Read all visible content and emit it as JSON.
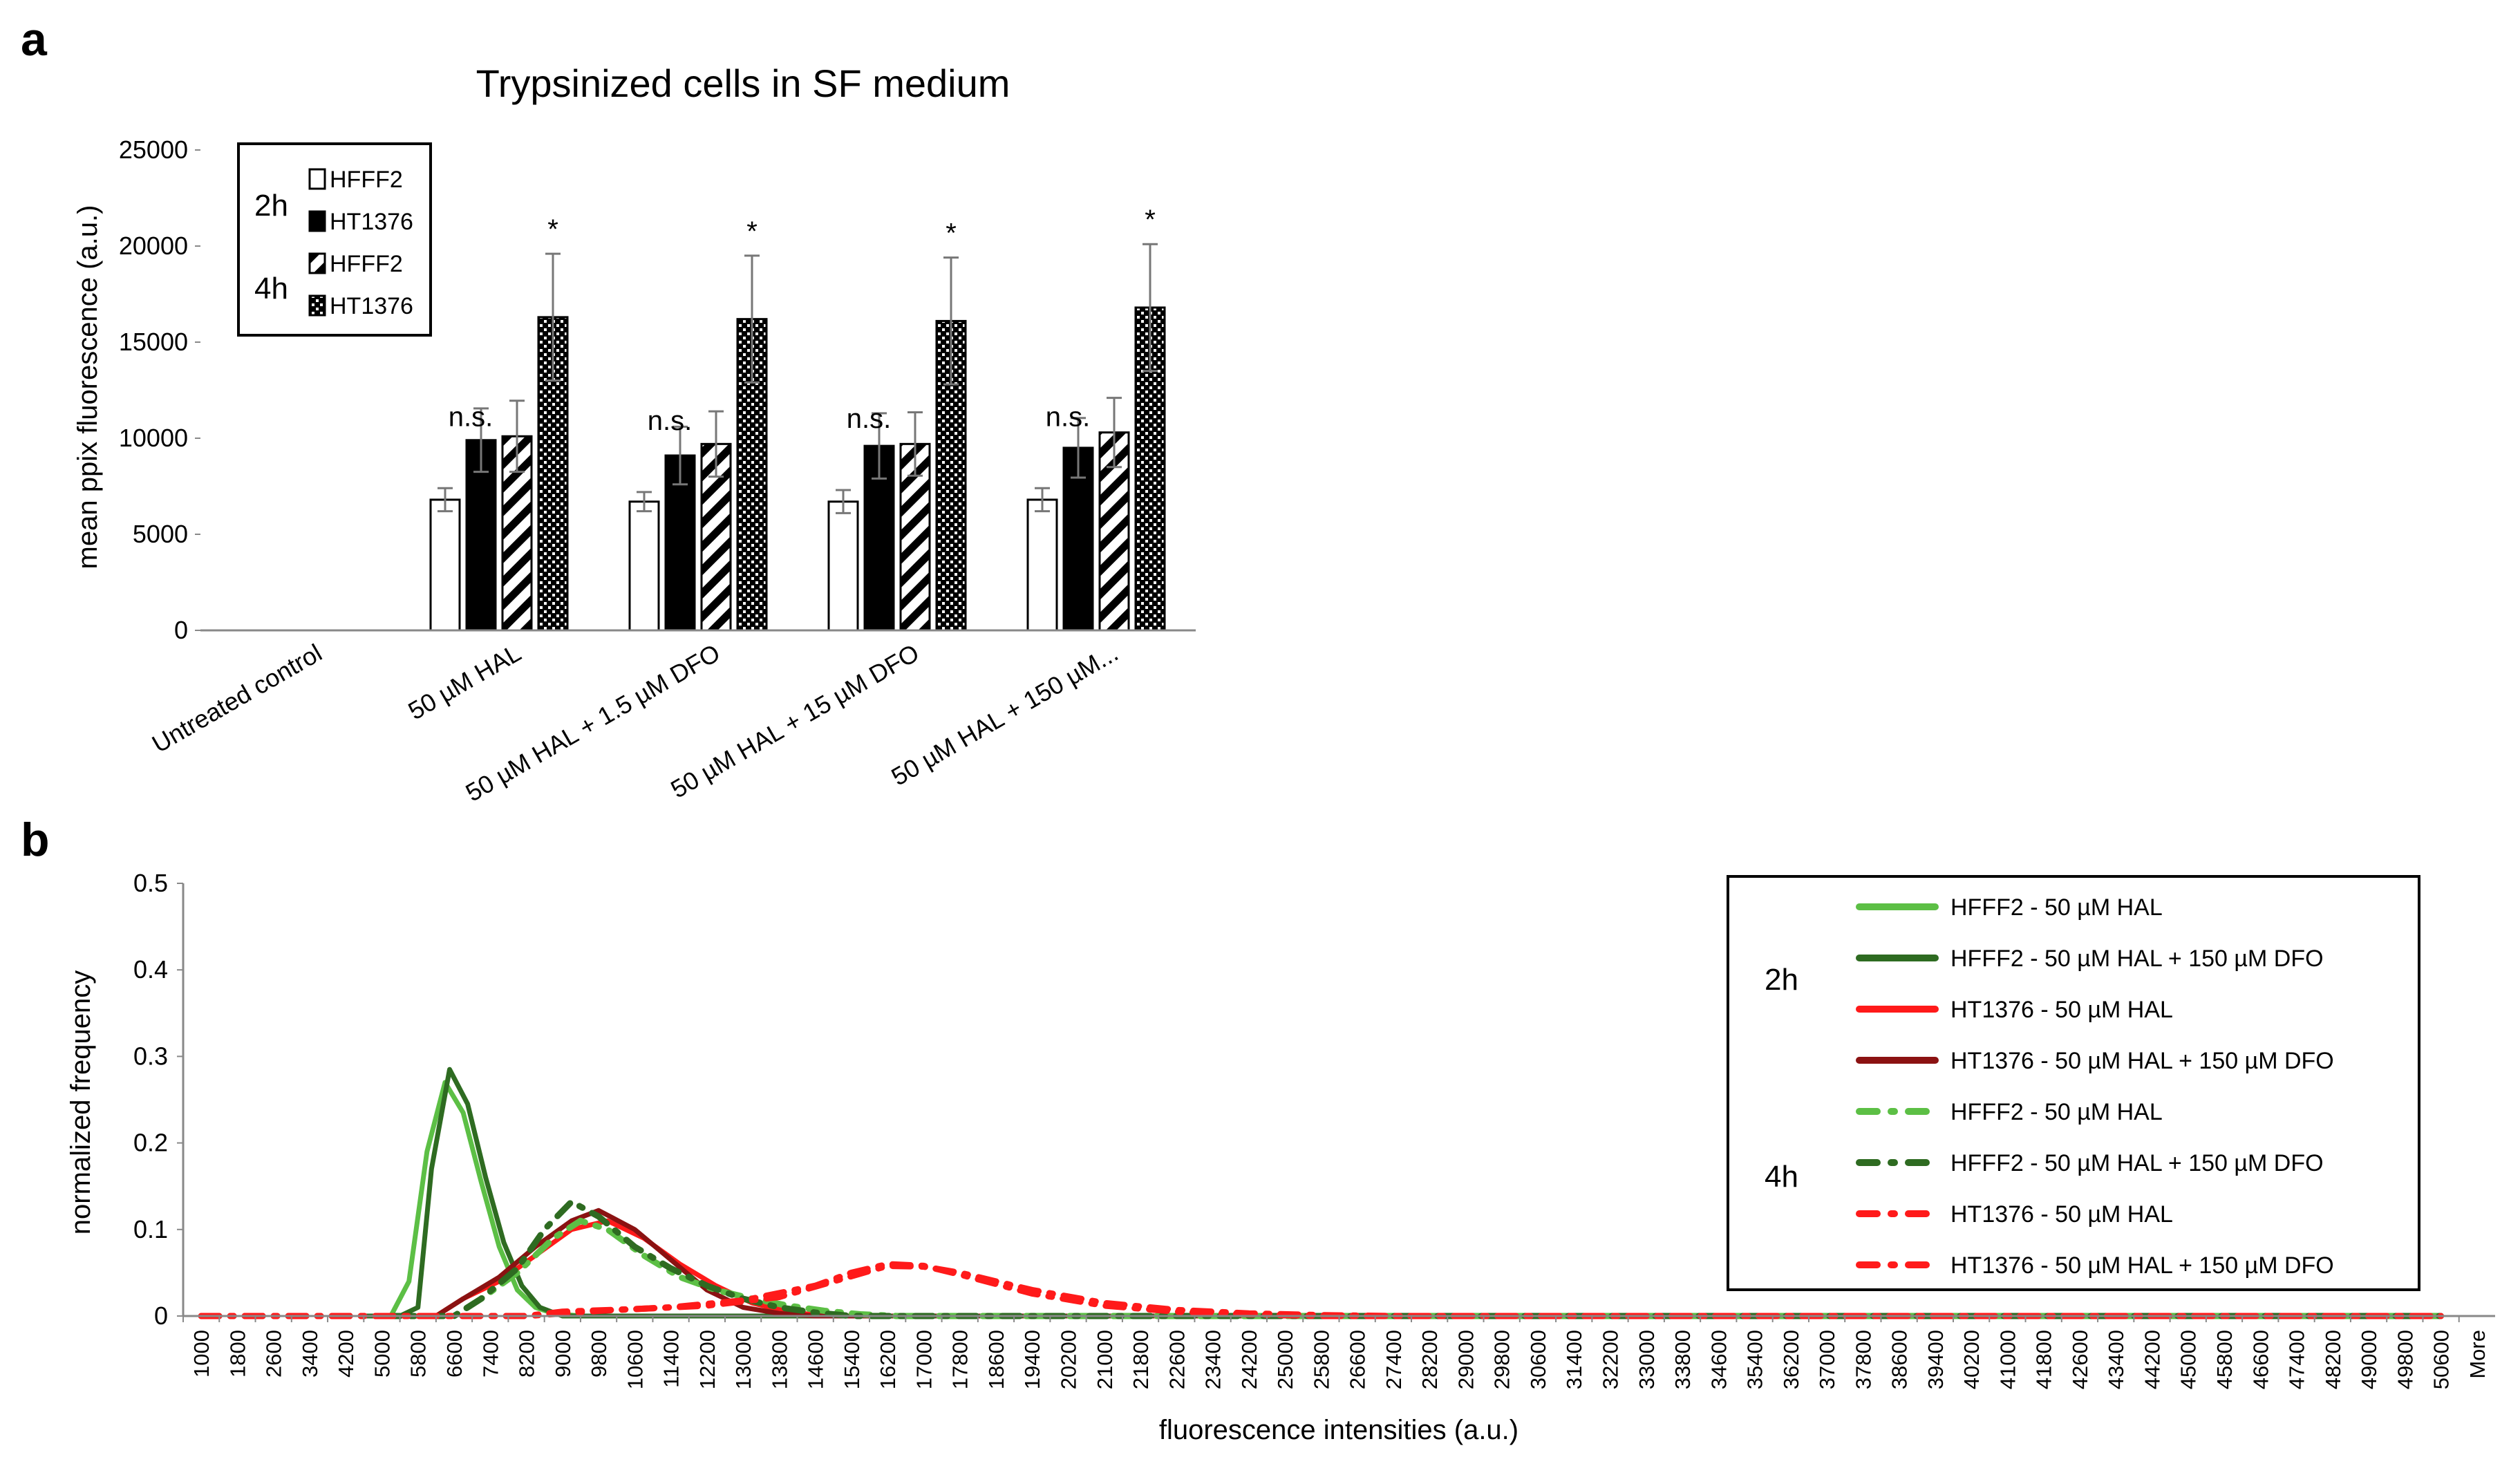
{
  "panels": {
    "a": {
      "letter": "a"
    },
    "b": {
      "letter": "b"
    }
  },
  "chart_data": [
    {
      "type": "bar",
      "panel": "a",
      "title": "Trypsinized cells in SF medium",
      "xlabel": "",
      "ylabel": "mean ppix fluorescence (a.u.)",
      "ylim": [
        0,
        25000
      ],
      "yticks": [
        "0",
        "5000",
        "10000",
        "15000",
        "20000",
        "25000"
      ],
      "categories": [
        "Untreated control",
        "50 µM HAL",
        "50 µM HAL + 1.5 µM DFO",
        "50 µM HAL + 15 µM DFO",
        "50 µM HAL + 150 µM..."
      ],
      "series": [
        {
          "name": "HFFF2",
          "time": "2h",
          "pattern": "white",
          "values": [
            0,
            6800,
            6700,
            6700,
            6800
          ],
          "errors": [
            0,
            600,
            500,
            600,
            600
          ]
        },
        {
          "name": "HT1376",
          "time": "2h",
          "pattern": "black",
          "values": [
            0,
            9900,
            9100,
            9600,
            9500
          ],
          "errors": [
            0,
            1650,
            1500,
            1700,
            1550
          ]
        },
        {
          "name": "HFFF2",
          "time": "4h",
          "pattern": "diagonal",
          "values": [
            0,
            10100,
            9700,
            9700,
            10300
          ],
          "errors": [
            0,
            1850,
            1700,
            1650,
            1800
          ]
        },
        {
          "name": "HT1376",
          "time": "4h",
          "pattern": "crosshatch",
          "values": [
            0,
            16300,
            16200,
            16100,
            16800
          ],
          "errors": [
            0,
            3300,
            3300,
            3300,
            3300
          ]
        }
      ],
      "annotations": [
        {
          "category": "50 µM HAL",
          "ns": "n.s.",
          "star": "*"
        },
        {
          "category": "50 µM HAL + 1.5 µM DFO",
          "ns": "n.s.",
          "star": "*"
        },
        {
          "category": "50 µM HAL + 15 µM DFO",
          "ns": "n.s.",
          "star": "*"
        },
        {
          "category": "50 µM HAL + 150 µM...",
          "ns": "n.s.",
          "star": "*"
        }
      ],
      "legend": {
        "position": "top-left",
        "time_labels": [
          "2h",
          "4h"
        ],
        "entries": [
          "HFFF2",
          "HT1376",
          "HFFF2",
          "HT1376"
        ]
      }
    },
    {
      "type": "line",
      "panel": "b",
      "title": "",
      "xlabel": "fluorescence intensities (a.u.)",
      "ylabel": "normalized frequency",
      "ylim": [
        0,
        0.5
      ],
      "yticks": [
        "0",
        "0.1",
        "0.2",
        "0.3",
        "0.4",
        "0.5"
      ],
      "x_categories": [
        "1000",
        "1800",
        "2600",
        "3400",
        "4200",
        "5000",
        "5800",
        "6600",
        "7400",
        "8200",
        "9000",
        "9800",
        "10600",
        "11400",
        "12200",
        "13000",
        "13800",
        "14600",
        "15400",
        "16200",
        "17000",
        "17800",
        "18600",
        "19400",
        "20200",
        "21000",
        "21800",
        "22600",
        "23400",
        "24200",
        "25000",
        "25800",
        "26600",
        "27400",
        "28200",
        "29000",
        "29800",
        "30600",
        "31400",
        "32200",
        "33000",
        "33800",
        "34600",
        "35400",
        "36200",
        "37000",
        "37800",
        "38600",
        "39400",
        "40200",
        "41000",
        "41800",
        "42600",
        "43400",
        "44200",
        "45000",
        "45800",
        "46600",
        "47400",
        "48200",
        "49000",
        "49800",
        "50600",
        "More"
      ],
      "legend": {
        "position": "right",
        "time_labels": [
          "2h",
          "4h"
        ]
      },
      "series": [
        {
          "name": "HFFF2 - 50 µM HAL",
          "time": "2h",
          "color": "#5cbf45",
          "dash": "solid",
          "points": [
            [
              4600,
              0
            ],
            [
              5200,
              0
            ],
            [
              5600,
              0.04
            ],
            [
              6000,
              0.19
            ],
            [
              6400,
              0.27
            ],
            [
              6800,
              0.235
            ],
            [
              7200,
              0.155
            ],
            [
              7600,
              0.08
            ],
            [
              8000,
              0.03
            ],
            [
              8400,
              0.01
            ],
            [
              8800,
              0.003
            ],
            [
              9400,
              0
            ],
            [
              50600,
              0
            ]
          ]
        },
        {
          "name": "HFFF2 - 50 µM HAL + 150 µM DFO",
          "time": "2h",
          "color": "#2e6b21",
          "dash": "solid",
          "points": [
            [
              4600,
              0
            ],
            [
              5400,
              0
            ],
            [
              5800,
              0.01
            ],
            [
              6100,
              0.17
            ],
            [
              6500,
              0.285
            ],
            [
              6900,
              0.245
            ],
            [
              7300,
              0.16
            ],
            [
              7700,
              0.085
            ],
            [
              8100,
              0.035
            ],
            [
              8500,
              0.01
            ],
            [
              9000,
              0
            ],
            [
              50600,
              0
            ]
          ]
        },
        {
          "name": "HT1376 - 50 µM HAL",
          "time": "2h",
          "color": "#ff1a1a",
          "dash": "solid",
          "points": [
            [
              5000,
              0
            ],
            [
              6200,
              0
            ],
            [
              6800,
              0.02
            ],
            [
              7600,
              0.04
            ],
            [
              8400,
              0.07
            ],
            [
              9200,
              0.1
            ],
            [
              10000,
              0.11
            ],
            [
              10800,
              0.09
            ],
            [
              11600,
              0.06
            ],
            [
              12400,
              0.035
            ],
            [
              13200,
              0.015
            ],
            [
              14000,
              0.005
            ],
            [
              14800,
              0
            ],
            [
              50600,
              0
            ]
          ]
        },
        {
          "name": "HT1376 - 50 µM HAL + 150 µM DFO",
          "time": "2h",
          "color": "#8b1212",
          "dash": "solid",
          "points": [
            [
              5000,
              0
            ],
            [
              6200,
              0
            ],
            [
              6800,
              0.02
            ],
            [
              7600,
              0.045
            ],
            [
              8400,
              0.08
            ],
            [
              9200,
              0.11
            ],
            [
              9800,
              0.122
            ],
            [
              10600,
              0.1
            ],
            [
              11400,
              0.065
            ],
            [
              12200,
              0.03
            ],
            [
              13000,
              0.01
            ],
            [
              13800,
              0.003
            ],
            [
              14600,
              0
            ],
            [
              50600,
              0
            ]
          ]
        },
        {
          "name": "HFFF2 - 50 µM HAL",
          "time": "4h",
          "color": "#5cbf45",
          "dash": "dashdot",
          "points": [
            [
              5000,
              0
            ],
            [
              6600,
              0
            ],
            [
              7200,
              0.02
            ],
            [
              8000,
              0.05
            ],
            [
              8800,
              0.09
            ],
            [
              9400,
              0.11
            ],
            [
              10000,
              0.1
            ],
            [
              10800,
              0.07
            ],
            [
              11600,
              0.045
            ],
            [
              12400,
              0.03
            ],
            [
              13200,
              0.02
            ],
            [
              14000,
              0.012
            ],
            [
              14800,
              0.006
            ],
            [
              15600,
              0.002
            ],
            [
              16400,
              0
            ],
            [
              50600,
              0
            ]
          ]
        },
        {
          "name": "HFFF2 - 50 µM HAL + 150 µM DFO",
          "time": "4h",
          "color": "#2e6b21",
          "dash": "dashdot",
          "points": [
            [
              5000,
              0
            ],
            [
              6600,
              0
            ],
            [
              7200,
              0.02
            ],
            [
              8000,
              0.055
            ],
            [
              8600,
              0.1
            ],
            [
              9200,
              0.132
            ],
            [
              9800,
              0.115
            ],
            [
              10600,
              0.08
            ],
            [
              11400,
              0.055
            ],
            [
              12200,
              0.035
            ],
            [
              13000,
              0.02
            ],
            [
              13800,
              0.01
            ],
            [
              14600,
              0.004
            ],
            [
              15400,
              0
            ],
            [
              50600,
              0
            ]
          ]
        },
        {
          "name": "HT1376 - 50 µM HAL",
          "time": "4h",
          "color": "#ff1a1a",
          "dash": "dashdot",
          "points": [
            [
              1000,
              0
            ],
            [
              8200,
              0
            ],
            [
              9000,
              0.005
            ],
            [
              10600,
              0.008
            ],
            [
              12200,
              0.012
            ],
            [
              13800,
              0.022
            ],
            [
              15000,
              0.04
            ],
            [
              16200,
              0.058
            ],
            [
              17000,
              0.057
            ],
            [
              17800,
              0.05
            ],
            [
              19400,
              0.03
            ],
            [
              21000,
              0.015
            ],
            [
              22600,
              0.007
            ],
            [
              24200,
              0.003
            ],
            [
              25800,
              0.001
            ],
            [
              27400,
              0
            ],
            [
              50600,
              0
            ]
          ]
        },
        {
          "name": "HT1376 - 50 µM HAL + 150 µM DFO",
          "time": "4h",
          "color": "#ff1a1a",
          "dash": "dashdot",
          "points": [
            [
              1000,
              0
            ],
            [
              8200,
              0
            ],
            [
              9800,
              0.006
            ],
            [
              11400,
              0.01
            ],
            [
              13000,
              0.018
            ],
            [
              14600,
              0.035
            ],
            [
              15400,
              0.05
            ],
            [
              16200,
              0.06
            ],
            [
              17000,
              0.058
            ],
            [
              17800,
              0.048
            ],
            [
              19400,
              0.026
            ],
            [
              21000,
              0.012
            ],
            [
              22600,
              0.005
            ],
            [
              24200,
              0.002
            ],
            [
              25800,
              0
            ],
            [
              50600,
              0
            ]
          ]
        }
      ]
    }
  ]
}
